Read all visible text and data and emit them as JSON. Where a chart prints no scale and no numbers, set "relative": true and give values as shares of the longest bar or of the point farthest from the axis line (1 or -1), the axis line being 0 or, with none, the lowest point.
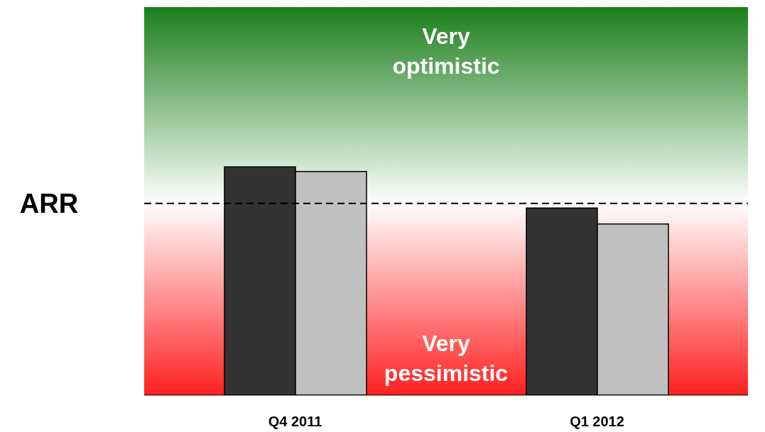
{
  "chart_data": {
    "type": "bar",
    "relative": true,
    "categories": [
      "Q4 2011",
      "Q1 2012"
    ],
    "series": [
      {
        "color": "#333333",
        "values": [
          1,
          0.82
        ]
      },
      {
        "color": "#c0c0c0",
        "values": [
          0.98,
          0.75
        ]
      }
    ],
    "ref_lines": [
      {
        "axis": "y",
        "value": 0.84,
        "label": "ARR",
        "color": "#000000",
        "line_style": "dashed"
      }
    ],
    "bands": [
      {
        "axis": "y",
        "from": 0.84,
        "to": 1.7,
        "label": "Very optimistic",
        "color": "#1a7f1a"
      },
      {
        "axis": "y",
        "from": 0,
        "to": 0.84,
        "label": "Very pessimistic",
        "color": "#ff2020"
      }
    ]
  }
}
